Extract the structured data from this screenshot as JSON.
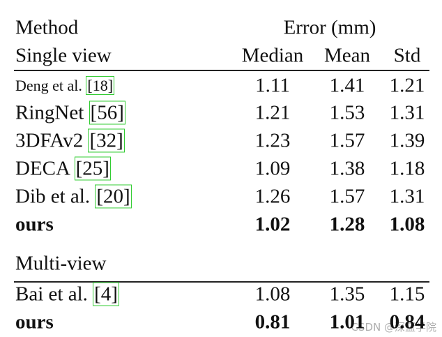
{
  "header": {
    "method": "Method",
    "error": "Error (mm)",
    "single_view": "Single view",
    "columns": [
      "Median",
      "Mean",
      "Std"
    ]
  },
  "single_view_rows": [
    {
      "method": "Deng et al.",
      "cite": "[18]",
      "values": [
        "1.11",
        "1.41",
        "1.21"
      ]
    },
    {
      "method": "RingNet",
      "cite": "[56]",
      "values": [
        "1.21",
        "1.53",
        "1.31"
      ]
    },
    {
      "method": "3DFAv2",
      "cite": "[32]",
      "values": [
        "1.23",
        "1.57",
        "1.39"
      ]
    },
    {
      "method": "DECA",
      "cite": "[25]",
      "values": [
        "1.09",
        "1.38",
        "1.18"
      ]
    },
    {
      "method": "Dib et al.",
      "cite": "[20]",
      "values": [
        "1.26",
        "1.57",
        "1.31"
      ]
    },
    {
      "method": "ours",
      "values": [
        "1.02",
        "1.28",
        "1.08"
      ]
    }
  ],
  "multi_view": "Multi-view",
  "multi_view_rows": [
    {
      "method": "Bai et al.",
      "cite": "[4]",
      "values": [
        "1.08",
        "1.35",
        "1.15"
      ]
    },
    {
      "method": "ours",
      "values": [
        "0.81",
        "1.01",
        "0.84"
      ]
    }
  ],
  "watermark": "CSDN @深蓝学院"
}
